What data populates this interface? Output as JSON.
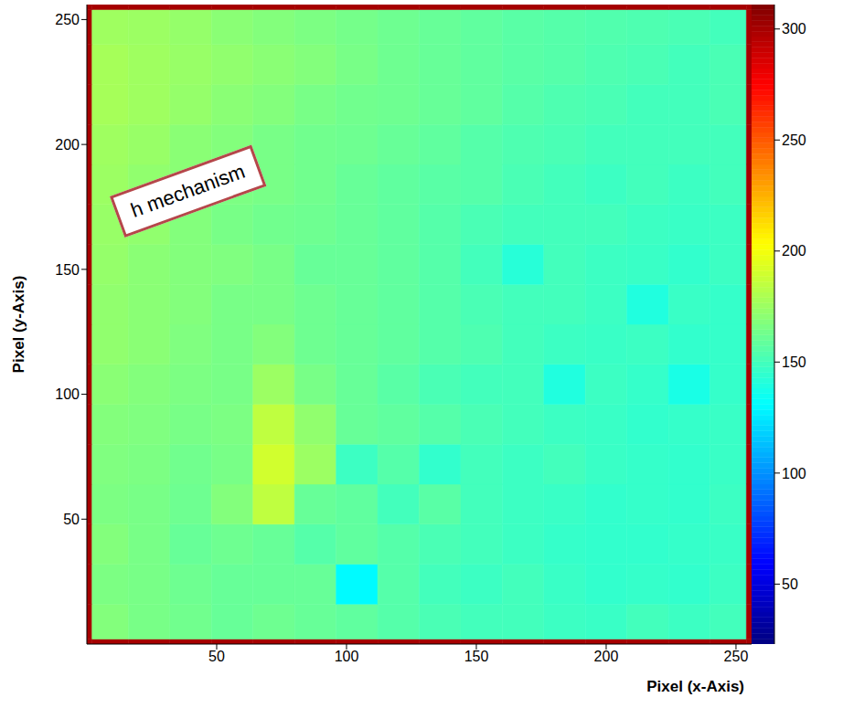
{
  "chart_data": {
    "type": "heatmap",
    "annotation": "h mechanism",
    "xlabel": "Pixel (x-Axis)",
    "ylabel": "Pixel (y-Axis)",
    "xlim": [
      0,
      256
    ],
    "ylim": [
      0,
      256
    ],
    "xticks": [
      50,
      100,
      150,
      200,
      250
    ],
    "yticks": [
      50,
      100,
      150,
      200,
      250
    ],
    "x_bins": [
      0,
      2,
      16,
      32,
      48,
      64,
      80,
      96,
      112,
      128,
      144,
      160,
      176,
      192,
      208,
      224,
      240,
      254,
      256
    ],
    "y_bins": [
      0,
      2,
      16,
      32,
      48,
      64,
      80,
      96,
      112,
      128,
      144,
      160,
      176,
      192,
      208,
      224,
      240,
      254,
      256
    ],
    "cells": [
      [
        300,
        300,
        300,
        300,
        300,
        300,
        300,
        300,
        300,
        300,
        300,
        300,
        300,
        300,
        300,
        300,
        300,
        300
      ],
      [
        300,
        168,
        165,
        163,
        160,
        162,
        160,
        158,
        155,
        152,
        150,
        150,
        148,
        147,
        150,
        148,
        150,
        300
      ],
      [
        300,
        166,
        165,
        162,
        160,
        160,
        160,
        130,
        155,
        150,
        148,
        150,
        147,
        145,
        146,
        145,
        148,
        300
      ],
      [
        300,
        168,
        165,
        160,
        162,
        160,
        155,
        158,
        155,
        152,
        150,
        148,
        146,
        145,
        145,
        146,
        147,
        300
      ],
      [
        300,
        166,
        165,
        162,
        168,
        185,
        160,
        158,
        150,
        156,
        150,
        148,
        147,
        145,
        146,
        145,
        148,
        300
      ],
      [
        300,
        167,
        166,
        163,
        165,
        190,
        175,
        148,
        155,
        145,
        150,
        148,
        150,
        147,
        146,
        145,
        147,
        300
      ],
      [
        300,
        168,
        167,
        165,
        166,
        185,
        172,
        160,
        158,
        155,
        152,
        150,
        148,
        147,
        145,
        146,
        147,
        300
      ],
      [
        300,
        170,
        168,
        166,
        165,
        175,
        165,
        160,
        156,
        152,
        150,
        150,
        140,
        148,
        146,
        138,
        146,
        300
      ],
      [
        300,
        172,
        170,
        167,
        165,
        168,
        162,
        160,
        158,
        155,
        153,
        150,
        148,
        147,
        148,
        145,
        146,
        300
      ],
      [
        300,
        172,
        170,
        168,
        165,
        165,
        162,
        160,
        158,
        155,
        152,
        150,
        150,
        148,
        140,
        147,
        146,
        300
      ],
      [
        300,
        173,
        170,
        168,
        167,
        165,
        160,
        160,
        158,
        155,
        150,
        142,
        150,
        148,
        147,
        145,
        148,
        300
      ],
      [
        300,
        174,
        172,
        168,
        165,
        163,
        162,
        160,
        158,
        155,
        152,
        150,
        150,
        150,
        148,
        147,
        148,
        300
      ],
      [
        300,
        175,
        172,
        170,
        166,
        165,
        163,
        160,
        158,
        156,
        155,
        152,
        150,
        148,
        150,
        148,
        150,
        300
      ],
      [
        300,
        176,
        174,
        170,
        168,
        165,
        163,
        162,
        160,
        158,
        155,
        153,
        152,
        150,
        150,
        150,
        150,
        300
      ],
      [
        300,
        178,
        176,
        173,
        170,
        168,
        165,
        163,
        162,
        160,
        158,
        155,
        153,
        152,
        150,
        150,
        152,
        300
      ],
      [
        300,
        178,
        176,
        174,
        172,
        170,
        168,
        165,
        162,
        160,
        158,
        156,
        155,
        153,
        152,
        150,
        152,
        300
      ],
      [
        300,
        176,
        175,
        173,
        170,
        168,
        166,
        164,
        162,
        160,
        158,
        156,
        155,
        154,
        153,
        152,
        150,
        300
      ],
      [
        300,
        300,
        300,
        300,
        300,
        300,
        300,
        300,
        300,
        300,
        300,
        300,
        300,
        300,
        300,
        300,
        300,
        300
      ]
    ],
    "colorbar": {
      "range": [
        23,
        311
      ],
      "ticks": [
        50,
        100,
        150,
        200,
        250,
        300
      ]
    }
  }
}
